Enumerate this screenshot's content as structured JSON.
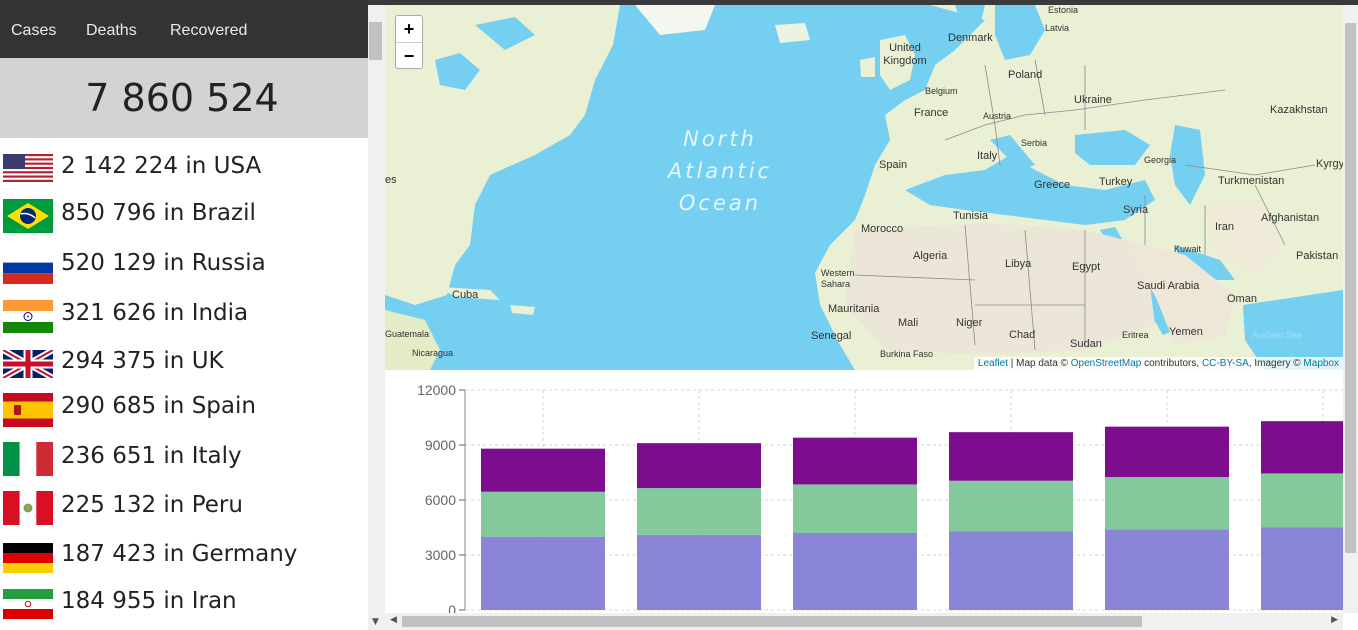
{
  "tabs": {
    "cases": "Cases",
    "deaths": "Deaths",
    "recovered": "Recovered"
  },
  "total": "7 860 524",
  "countries": [
    {
      "flag": "us-flag",
      "text": "2 142 224 in USA"
    },
    {
      "flag": "brazil-flag",
      "text": "850 796 in Brazil"
    },
    {
      "flag": "russia-flag",
      "text": "520 129 in Russia"
    },
    {
      "flag": "india-flag",
      "text": "321 626 in India"
    },
    {
      "flag": "uk-flag",
      "text": "294 375 in UK"
    },
    {
      "flag": "spain-flag",
      "text": "290 685 in Spain"
    },
    {
      "flag": "italy-flag",
      "text": "236 651 in Italy"
    },
    {
      "flag": "peru-flag",
      "text": "225 132 in Peru"
    },
    {
      "flag": "germany-flag",
      "text": "187 423 in Germany"
    },
    {
      "flag": "iran-flag",
      "text": "184 955 in Iran"
    }
  ],
  "map": {
    "zoom_in": "+",
    "zoom_out": "−",
    "ocean_line1": "North",
    "ocean_line2": "Atlantic",
    "ocean_line3": "Ocean",
    "labels": [
      "Estonia",
      "Latvia",
      "Denmark",
      "United Kingdom",
      "Poland",
      "Belgium",
      "Ukraine",
      "Kazakhstan",
      "France",
      "Austria",
      "Serbia",
      "Kyrgyz",
      "Spain",
      "Italy",
      "Georgia",
      "Turkmenistan",
      "Greece",
      "Turkey",
      "Tunisia",
      "Syria",
      "Afghanistan",
      "Morocco",
      "Iran",
      "Kuwait",
      "Algeria",
      "Libya",
      "Egypt",
      "Pakistan",
      "Western Sahara",
      "Saudi Arabia",
      "Oman",
      "Mauritania",
      "Mali",
      "Niger",
      "Chad",
      "Sudan",
      "Eritrea",
      "Yemen",
      "Senegal",
      "Burkina Faso",
      "Cuba",
      "Nicaragua",
      "Guatemala",
      "Arabian Sea",
      "es"
    ],
    "attribution": {
      "leaflet": "Leaflet",
      "sep1": " | Map data © ",
      "osm": "OpenStreetMap",
      "contrib": " contributors, ",
      "license": "CC-BY-SA",
      "imagery": ", Imagery © ",
      "mapbox": "Mapbox"
    }
  },
  "colors": {
    "purple": "#7b0d8e",
    "green": "#84c99b",
    "lavender": "#8a85d6",
    "tabbar": "#333333",
    "total_bg": "#d3d3d3"
  },
  "chart_data": {
    "type": "bar",
    "stacked": true,
    "ylim": [
      0,
      12000
    ],
    "yticks": [
      "12000",
      "9000",
      "6000",
      "3000",
      "0"
    ],
    "categories": [
      "",
      "",
      "",
      "",
      "",
      ""
    ],
    "series": [
      {
        "color": "#8a85d6",
        "values": [
          4000,
          4100,
          4200,
          4300,
          4400,
          4500
        ]
      },
      {
        "color": "#84c99b",
        "values": [
          2450,
          2550,
          2650,
          2750,
          2850,
          2950
        ]
      },
      {
        "color": "#7b0d8e",
        "values": [
          2350,
          2450,
          2550,
          2650,
          2750,
          2850
        ]
      }
    ],
    "grid": true
  }
}
